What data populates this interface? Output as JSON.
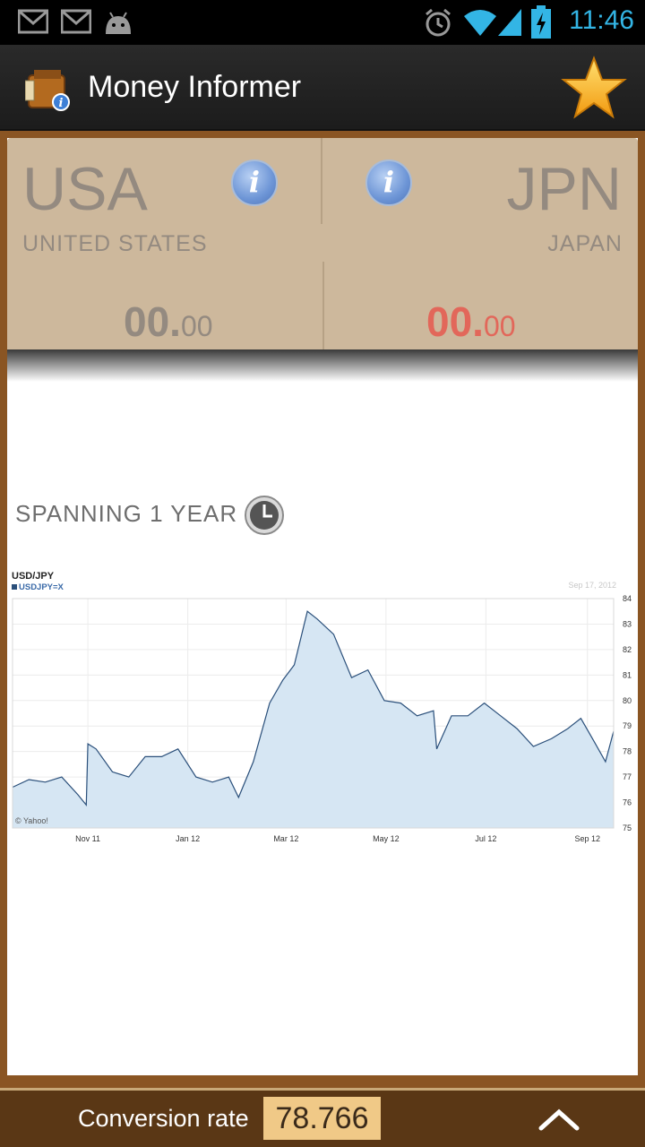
{
  "status_bar": {
    "time": "11:46",
    "icons": [
      "gmail-icon",
      "gmail-icon",
      "android-icon",
      "alarm-icon",
      "wifi-icon",
      "signal-icon",
      "battery-charging-icon"
    ]
  },
  "app_bar": {
    "title": "Money Informer",
    "app_icon": "wallet-info-icon",
    "favorite_icon": "star-icon"
  },
  "currency_from": {
    "code": "USA",
    "name": "UNITED STATES",
    "amount_int": "00.",
    "amount_dec": "00",
    "color": "#948a80"
  },
  "currency_to": {
    "code": "JPN",
    "name": "JAPAN",
    "amount_int": "00.",
    "amount_dec": "00",
    "color": "#e2675a"
  },
  "span": {
    "label": "SPANNING 1 YEAR",
    "icon": "clock-icon"
  },
  "chart_data": {
    "type": "area",
    "title": "USD/JPY",
    "legend": "USDJPY=X",
    "date_label": "Sep 17, 2012",
    "watermark": "© Yahoo!",
    "x_ticks": [
      "Nov 11",
      "Jan 12",
      "Mar 12",
      "May 12",
      "Jul 12",
      "Sep 12"
    ],
    "y_ticks": [
      75,
      76,
      77,
      78,
      79,
      80,
      81,
      82,
      83,
      84
    ],
    "ylim": [
      75,
      84
    ],
    "x_range": [
      "Sep 16 2011",
      "Sep 17 2012"
    ],
    "series": [
      {
        "color": "#2a4f7a",
        "fill": "#d6e6f3",
        "points": [
          [
            "Sep 16 2011",
            76.6
          ],
          [
            "Sep 26 2011",
            76.9
          ],
          [
            "Oct 06 2011",
            76.8
          ],
          [
            "Oct 16 2011",
            77.0
          ],
          [
            "Oct 26 2011",
            76.3
          ],
          [
            "Oct 31 2011",
            75.9
          ],
          [
            "Nov 01 2011",
            78.3
          ],
          [
            "Nov 06 2011",
            78.1
          ],
          [
            "Nov 16 2011",
            77.2
          ],
          [
            "Nov 26 2011",
            77.0
          ],
          [
            "Dec 06 2011",
            77.8
          ],
          [
            "Dec 16 2011",
            77.8
          ],
          [
            "Dec 26 2011",
            78.1
          ],
          [
            "Jan 06 2012",
            77.0
          ],
          [
            "Jan 16 2012",
            76.8
          ],
          [
            "Jan 26 2012",
            77.0
          ],
          [
            "Feb 01 2012",
            76.2
          ],
          [
            "Feb 10 2012",
            77.6
          ],
          [
            "Feb 20 2012",
            79.9
          ],
          [
            "Feb 28 2012",
            80.8
          ],
          [
            "Mar 06 2012",
            81.4
          ],
          [
            "Mar 14 2012",
            83.5
          ],
          [
            "Mar 20 2012",
            83.2
          ],
          [
            "Mar 30 2012",
            82.6
          ],
          [
            "Apr 10 2012",
            80.9
          ],
          [
            "Apr 20 2012",
            81.2
          ],
          [
            "Apr 30 2012",
            80.0
          ],
          [
            "May 10 2012",
            79.9
          ],
          [
            "May 20 2012",
            79.4
          ],
          [
            "May 30 2012",
            79.6
          ],
          [
            "Jun 01 2012",
            78.1
          ],
          [
            "Jun 10 2012",
            79.4
          ],
          [
            "Jun 20 2012",
            79.4
          ],
          [
            "Jun 30 2012",
            79.9
          ],
          [
            "Jul 10 2012",
            79.4
          ],
          [
            "Jul 20 2012",
            78.9
          ],
          [
            "Jul 30 2012",
            78.2
          ],
          [
            "Aug 10 2012",
            78.5
          ],
          [
            "Aug 20 2012",
            78.9
          ],
          [
            "Aug 28 2012",
            79.3
          ],
          [
            "Sep 05 2012",
            78.4
          ],
          [
            "Sep 12 2012",
            77.6
          ],
          [
            "Sep 17 2012",
            78.8
          ]
        ]
      }
    ]
  },
  "footer": {
    "label": "Conversion rate",
    "value": "78.766",
    "expand_icon": "chevron-up-icon"
  }
}
